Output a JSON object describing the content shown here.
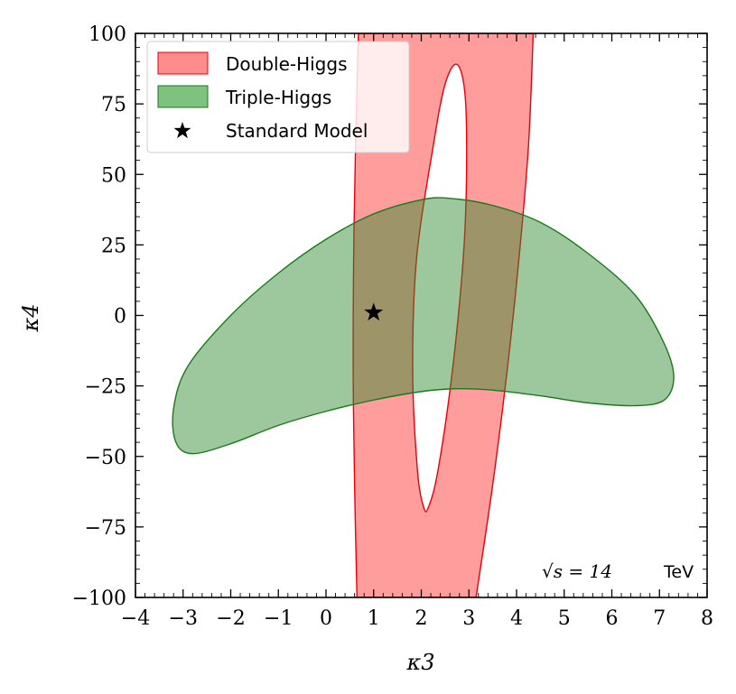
{
  "chart_data": {
    "type": "contour",
    "xlabel": "κ3",
    "ylabel": "κ4",
    "xlim": [
      -4,
      8
    ],
    "ylim": [
      -100,
      100
    ],
    "xticks": [
      -4,
      -3,
      -2,
      -1,
      0,
      1,
      2,
      3,
      4,
      5,
      6,
      7,
      8
    ],
    "yticks": [
      -100,
      -75,
      -50,
      -25,
      0,
      25,
      50,
      75,
      100
    ],
    "xtick_labels": [
      "−4",
      "−3",
      "−2",
      "−1",
      "0",
      "1",
      "2",
      "3",
      "4",
      "5",
      "6",
      "7",
      "8"
    ],
    "ytick_labels": [
      "−100",
      "−75",
      "−50",
      "−25",
      "0",
      "25",
      "50",
      "75",
      "100"
    ],
    "legend_position": "top-left",
    "series": [
      {
        "name": "Double-Higgs",
        "kind": "band",
        "fill": "#ff8c8c",
        "edge": "#e8000b",
        "outer": [
          [
            0.65,
            -100
          ],
          [
            0.6,
            -60
          ],
          [
            0.57,
            -20
          ],
          [
            0.58,
            20
          ],
          [
            0.62,
            60
          ],
          [
            0.68,
            100
          ],
          [
            4.35,
            100
          ],
          [
            4.25,
            60
          ],
          [
            4.05,
            20
          ],
          [
            3.8,
            -20
          ],
          [
            3.5,
            -60
          ],
          [
            3.15,
            -100
          ]
        ],
        "inner": [
          [
            2.05,
            -68
          ],
          [
            1.92,
            -55
          ],
          [
            1.82,
            -20
          ],
          [
            1.9,
            20
          ],
          [
            2.25,
            60
          ],
          [
            2.5,
            82
          ],
          [
            2.75,
            89
          ],
          [
            2.92,
            78
          ],
          [
            2.95,
            50
          ],
          [
            2.88,
            20
          ],
          [
            2.65,
            -20
          ],
          [
            2.35,
            -55
          ],
          [
            2.15,
            -68
          ]
        ]
      },
      {
        "name": "Triple-Higgs",
        "kind": "region",
        "fill": "#7fc17f",
        "edge": "#1a7a1a",
        "outline": [
          [
            -3.2,
            -33
          ],
          [
            -2.9,
            -18
          ],
          [
            -2.0,
            0
          ],
          [
            -1.0,
            15
          ],
          [
            0.0,
            27
          ],
          [
            1.0,
            36
          ],
          [
            2.0,
            41
          ],
          [
            2.6,
            41.5
          ],
          [
            3.5,
            39
          ],
          [
            4.5,
            33
          ],
          [
            5.5,
            22
          ],
          [
            6.5,
            7
          ],
          [
            7.1,
            -10
          ],
          [
            7.3,
            -22
          ],
          [
            7.1,
            -30
          ],
          [
            6.5,
            -32
          ],
          [
            5.5,
            -31
          ],
          [
            4.5,
            -28.5
          ],
          [
            3.5,
            -26.5
          ],
          [
            2.7,
            -26
          ],
          [
            2.0,
            -27
          ],
          [
            1.0,
            -30
          ],
          [
            0.0,
            -34
          ],
          [
            -1.0,
            -39
          ],
          [
            -2.0,
            -45.5
          ],
          [
            -2.8,
            -49
          ],
          [
            -3.15,
            -45
          ]
        ]
      },
      {
        "name": "Standard Model",
        "kind": "point",
        "marker": "star",
        "color": "#000000",
        "x": 1,
        "y": 1
      }
    ],
    "annotation": {
      "math": "√s = 14",
      "unit": "TeV",
      "position": "bottom-right"
    }
  }
}
